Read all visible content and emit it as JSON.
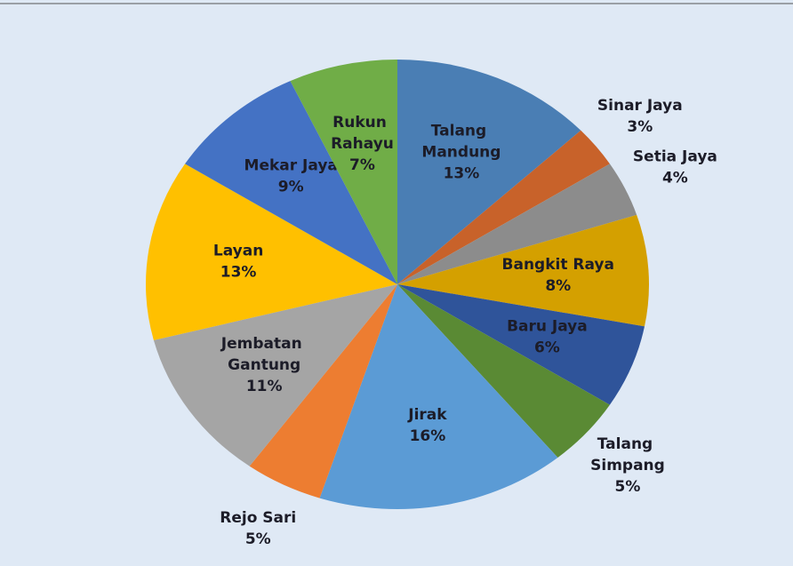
{
  "chart_data": {
    "type": "pie",
    "categories": [
      "Talang Mandung",
      "Sinar Jaya",
      "Setia Jaya",
      "Bangkit Raya",
      "Baru Jaya",
      "Talang Simpang",
      "Jirak",
      "Rejo Sari",
      "Jembatan Gantung",
      "Layan",
      "Mekar Jaya",
      "Rukun Rahayu"
    ],
    "values": [
      13,
      3,
      4,
      8,
      6,
      5,
      16,
      5,
      11,
      13,
      9,
      7
    ],
    "value_labels": [
      "13%",
      "3%",
      "4%",
      "8%",
      "6%",
      "5%",
      "16%",
      "5%",
      "11%",
      "13%",
      "9%",
      "7%"
    ],
    "colors": [
      "#4a7eb4",
      "#c8622a",
      "#8c8c8c",
      "#d4a000",
      "#2f549a",
      "#5a8a34",
      "#5b9bd5",
      "#ed7d31",
      "#a5a5a5",
      "#ffc000",
      "#4472c4",
      "#70ad47"
    ]
  }
}
